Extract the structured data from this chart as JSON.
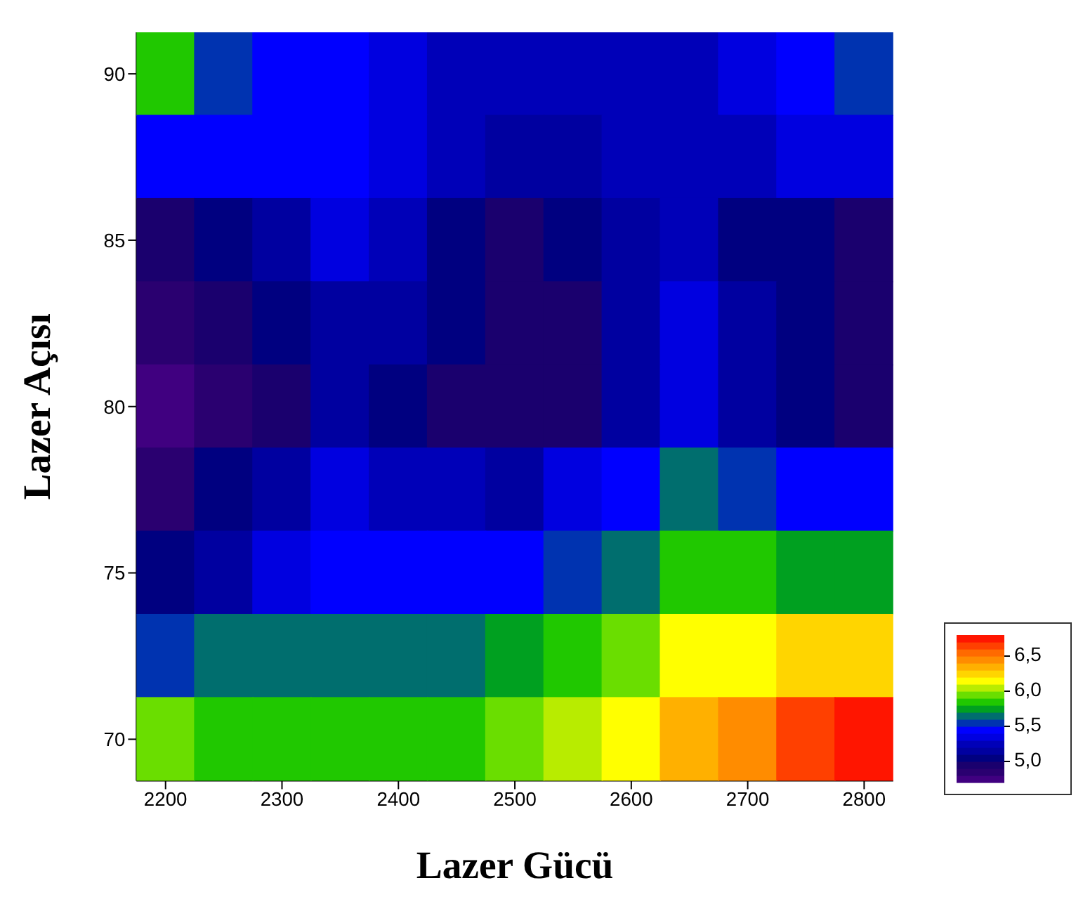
{
  "chart_data": {
    "type": "heatmap",
    "xlabel": "Lazer Gücü",
    "ylabel": "Lazer Açısı",
    "categories": [
      "2200",
      null,
      "2300",
      null,
      "2400",
      null,
      "2500",
      null,
      "2600",
      null,
      "2700",
      null,
      "2800"
    ],
    "y_categories": [
      "90",
      null,
      "85",
      null,
      "80",
      null,
      "75",
      null,
      "70"
    ],
    "cells": [
      [
        5.8,
        5.55,
        5.4,
        5.4,
        5.35,
        5.25,
        5.2,
        5.2,
        5.2,
        5.25,
        5.35,
        5.45,
        5.5
      ],
      [
        5.4,
        5.4,
        5.45,
        5.4,
        5.3,
        5.2,
        5.1,
        5.15,
        5.2,
        5.2,
        5.25,
        5.3,
        5.35
      ],
      [
        4.95,
        5.0,
        5.1,
        5.3,
        5.2,
        5.05,
        4.95,
        5.05,
        5.15,
        5.2,
        5.05,
        5.0,
        4.95
      ],
      [
        4.8,
        4.9,
        5.0,
        5.15,
        5.1,
        5.0,
        4.92,
        4.95,
        5.1,
        5.35,
        5.15,
        5.0,
        4.92
      ],
      [
        4.7,
        4.8,
        4.95,
        5.1,
        5.0,
        4.95,
        4.9,
        4.95,
        5.1,
        5.35,
        5.1,
        5.0,
        4.95
      ],
      [
        4.85,
        5.0,
        5.1,
        5.3,
        5.25,
        5.2,
        5.15,
        5.3,
        5.45,
        5.6,
        5.5,
        5.45,
        5.4
      ],
      [
        5.05,
        5.15,
        5.3,
        5.45,
        5.45,
        5.45,
        5.4,
        5.55,
        5.65,
        5.85,
        5.8,
        5.75,
        5.75
      ],
      [
        5.55,
        5.6,
        5.65,
        5.65,
        5.65,
        5.65,
        5.7,
        5.85,
        5.95,
        6.1,
        6.15,
        6.2,
        6.25
      ],
      [
        5.9,
        5.85,
        5.8,
        5.8,
        5.85,
        5.85,
        5.9,
        6.05,
        6.15,
        6.3,
        6.45,
        6.6,
        6.75
      ]
    ],
    "clim": [
      4.7,
      6.8
    ],
    "cticks": [
      {
        "value": 5.0,
        "label": "5,0"
      },
      {
        "value": 5.5,
        "label": "5,5"
      },
      {
        "value": 6.0,
        "label": "6,0"
      },
      {
        "value": 6.5,
        "label": "6,5"
      }
    ]
  }
}
